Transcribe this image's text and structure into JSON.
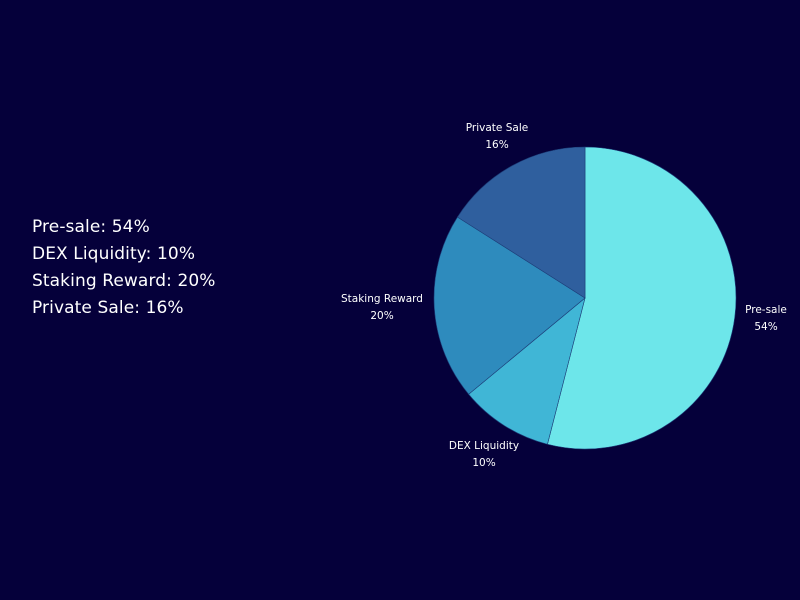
{
  "summary": {
    "lines": [
      "Pre-sale: 54%",
      "DEX Liquidity: 10%",
      "Staking Reward: 20%",
      "Private Sale: 16%"
    ]
  },
  "chart_data": {
    "type": "pie",
    "categories": [
      "Pre-sale",
      "DEX Liquidity",
      "Staking Reward",
      "Private Sale"
    ],
    "values": [
      54,
      10,
      20,
      16
    ],
    "value_labels": [
      "54%",
      "10%",
      "20%",
      "16%"
    ],
    "colors": [
      "#6de6ea",
      "#40b6d6",
      "#2e8bbd",
      "#2f5f9e"
    ],
    "start": "top, clockwise",
    "title": "",
    "legend": "none"
  }
}
